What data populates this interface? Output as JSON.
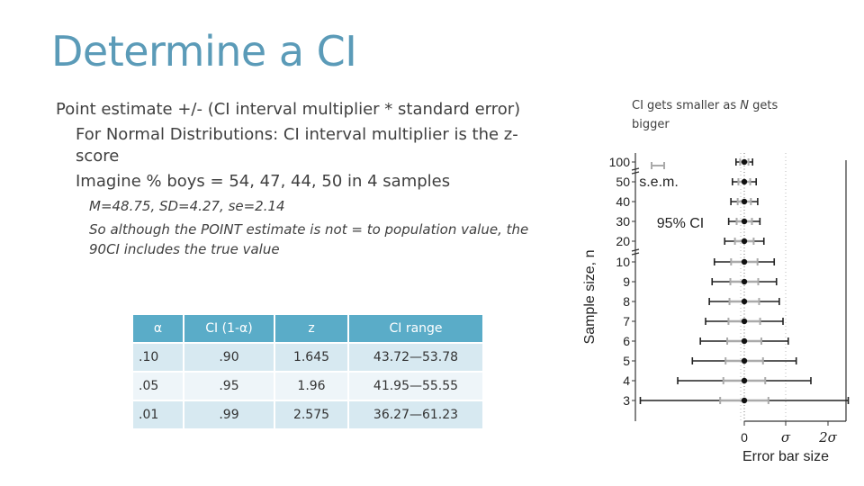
{
  "slide": {
    "title": "Determine a CI",
    "bullets": [
      {
        "level": 1,
        "text": "Point estimate +/- (CI interval multiplier * standard error)"
      },
      {
        "level": 2,
        "text": "For Normal Distributions: CI interval multiplier is the z-score"
      },
      {
        "level": 2,
        "text": "Imagine % boys = 54, 47, 44, 50 in 4 samples"
      },
      {
        "level": 3,
        "text": "M=48.75, SD=4.27, se=2.14"
      },
      {
        "level": 3,
        "text": "So although the POINT estimate is not = to population value, the 90CI includes the true value"
      }
    ],
    "side_note": {
      "before": "CI gets smaller as ",
      "italic": "N",
      "after": " gets bigger"
    }
  },
  "table": {
    "headers": [
      "α",
      "CI (1-α)",
      "z",
      "CI range"
    ],
    "rows": [
      [
        ".10",
        ".90",
        "1.645",
        "43.72—53.78"
      ],
      [
        ".05",
        ".95",
        "1.96",
        "41.95—55.55"
      ],
      [
        ".01",
        ".99",
        "2.575",
        "36.27—61.23"
      ]
    ]
  },
  "colors": {
    "title": "#5b9bb8",
    "header": "#5aacc8",
    "row_odd": "#d7e9f1",
    "row_even": "#eef5f9",
    "ci_bar": "#222222",
    "sem_bar": "#aaaaaa"
  },
  "chart_data": {
    "type": "scatter",
    "xlabel": "Error bar size",
    "ylabel": "Sample size, n",
    "x_ticks": [
      "0",
      "σ",
      "2σ"
    ],
    "categories": [
      "100",
      "50",
      "40",
      "30",
      "20",
      "10",
      "9",
      "8",
      "7",
      "6",
      "5",
      "4",
      "3"
    ],
    "legend": [
      "s.e.m.",
      "95% CI"
    ],
    "grid": false,
    "series": [
      {
        "name": "s.e.m.",
        "values": [
          0.1,
          0.141,
          0.158,
          0.183,
          0.224,
          0.316,
          0.333,
          0.354,
          0.378,
          0.408,
          0.447,
          0.5,
          0.577
        ]
      },
      {
        "name": "95% CI",
        "values": [
          0.198,
          0.284,
          0.32,
          0.373,
          0.468,
          0.715,
          0.769,
          0.836,
          0.925,
          1.05,
          1.241,
          1.591,
          2.484
        ]
      }
    ]
  }
}
